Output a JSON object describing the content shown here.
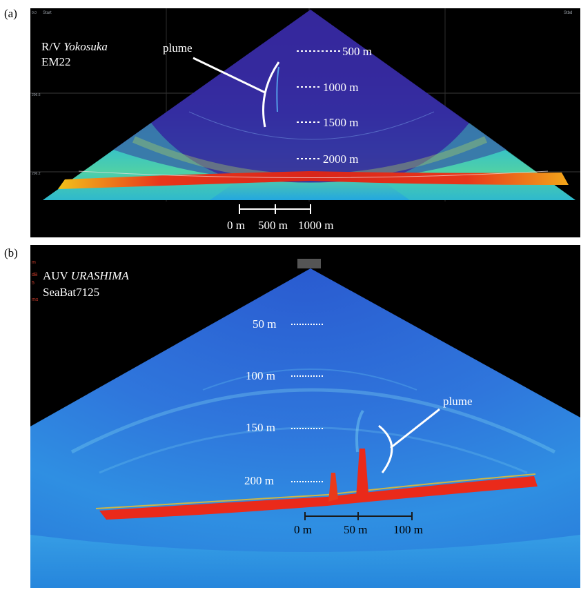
{
  "panel_a": {
    "label": "(a)",
    "vessel_prefix": "R/V ",
    "vessel_name": "Yokosuka",
    "instrument": "EM22",
    "plume_label": "plume",
    "depth_marks": [
      "500 m",
      "1000 m",
      "1500 m",
      "2000 m"
    ],
    "scale_labels": [
      "0 m",
      "500 m",
      "1000 m"
    ],
    "ui_corner_left": "Start",
    "ui_corner_right": "Stbd",
    "ui_side_upper": "206.6",
    "ui_side_lower": "206.2",
    "ui_top_left": "0.0"
  },
  "panel_b": {
    "label": "(b)",
    "vehicle_prefix": "AUV ",
    "vehicle_name": "URASHIMA",
    "instrument": "SeaBat7125",
    "plume_label": "plume",
    "depth_marks": [
      "50 m",
      "100 m",
      "150 m",
      "200 m"
    ],
    "scale_labels": [
      "0 m",
      "50 m",
      "100 m"
    ],
    "ui_side_labels": [
      "m",
      "dB",
      "5",
      "ms"
    ]
  }
}
